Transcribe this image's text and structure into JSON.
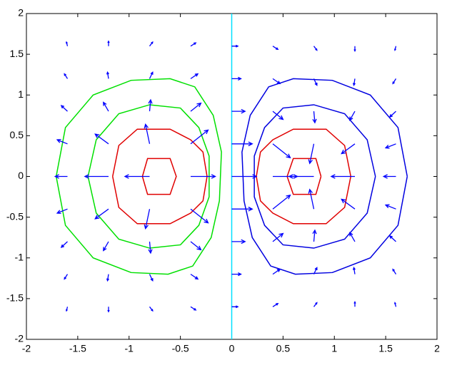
{
  "chart_data": {
    "type": "quiver",
    "xlim": [
      -2,
      2
    ],
    "ylim": [
      -2,
      2
    ],
    "xticks": [
      -2,
      -1.5,
      -1,
      -0.5,
      0,
      0.5,
      1,
      1.5,
      2
    ],
    "yticks": [
      -2,
      -1.5,
      -1,
      -0.5,
      0,
      0.5,
      1,
      1.5,
      2
    ],
    "quiver": {
      "color": "#0000ff",
      "x": [
        -1.6,
        -1.2,
        -0.8,
        -0.4,
        0,
        0.4,
        0.8,
        1.2,
        1.6
      ],
      "y": [
        -1.6,
        -1.2,
        -0.8,
        -0.4,
        0,
        0.4,
        0.8,
        1.2,
        1.6
      ],
      "u": [
        [
          -0.01,
          0,
          0.03,
          0.05,
          0.06,
          0.05,
          0.03,
          0,
          -0.01
        ],
        [
          -0.03,
          -0.01,
          0.03,
          0.07,
          0.09,
          0.07,
          0.03,
          -0.01,
          -0.03
        ],
        [
          -0.06,
          -0.05,
          0.01,
          0.1,
          0.13,
          0.1,
          0.01,
          -0.05,
          -0.06
        ],
        [
          -0.1,
          -0.13,
          -0.04,
          0.17,
          0.2,
          0.17,
          -0.04,
          -0.13,
          -0.1
        ],
        [
          -0.12,
          -0.23,
          -0.24,
          0.24,
          0.24,
          0.24,
          -0.24,
          -0.23,
          -0.12
        ],
        [
          -0.1,
          -0.13,
          -0.04,
          0.17,
          0.2,
          0.17,
          -0.04,
          -0.13,
          -0.1
        ],
        [
          -0.06,
          -0.05,
          0.01,
          0.1,
          0.13,
          0.1,
          0.01,
          -0.05,
          -0.06
        ],
        [
          -0.03,
          -0.01,
          0.03,
          0.07,
          0.09,
          0.07,
          0.03,
          -0.01,
          -0.03
        ],
        [
          -0.01,
          0,
          0.03,
          0.05,
          0.06,
          0.05,
          0.03,
          0,
          -0.01
        ]
      ],
      "v": [
        [
          -0.05,
          -0.06,
          -0.05,
          -0.04,
          0,
          0.04,
          0.05,
          0.06,
          0.05
        ],
        [
          -0.06,
          -0.08,
          -0.08,
          -0.06,
          0,
          0.06,
          0.08,
          0.08,
          0.06
        ],
        [
          -0.07,
          -0.11,
          -0.14,
          -0.1,
          0,
          0.1,
          0.14,
          0.11,
          0.07
        ],
        [
          -0.05,
          -0.12,
          -0.24,
          -0.17,
          0,
          0.17,
          0.24,
          0.12,
          0.05
        ],
        [
          0,
          0,
          0,
          0,
          0,
          0,
          0,
          0,
          0
        ],
        [
          0.05,
          0.12,
          0.24,
          0.17,
          0,
          -0.17,
          -0.24,
          -0.12,
          -0.05
        ],
        [
          0.07,
          0.11,
          0.14,
          0.1,
          0,
          -0.1,
          -0.14,
          -0.11,
          -0.07
        ],
        [
          0.06,
          0.08,
          0.08,
          0.06,
          0,
          -0.06,
          -0.08,
          -0.08,
          -0.06
        ],
        [
          0.05,
          0.06,
          0.05,
          0.04,
          0,
          -0.04,
          -0.05,
          -0.06,
          -0.05
        ]
      ]
    },
    "contours": [
      {
        "color": "#00e000",
        "x": [
          -1.71,
          -1.62,
          -1.35,
          -0.98,
          -0.6,
          -0.36,
          -0.18,
          -0.1,
          -0.12,
          -0.2,
          -0.38,
          -0.62,
          -0.98,
          -1.35,
          -1.62,
          -1.71
        ],
        "y": [
          0,
          0.6,
          1.0,
          1.18,
          1.2,
          1.1,
          0.75,
          0.3,
          -0.3,
          -0.75,
          -1.1,
          -1.2,
          -1.18,
          -1.0,
          -0.6,
          0
        ]
      },
      {
        "color": "#00e000",
        "x": [
          -1.4,
          -1.32,
          -1.1,
          -0.8,
          -0.5,
          -0.32,
          -0.22,
          -0.22,
          -0.32,
          -0.5,
          -0.8,
          -1.1,
          -1.32,
          -1.4
        ],
        "y": [
          0,
          0.45,
          0.77,
          0.88,
          0.84,
          0.6,
          0.25,
          -0.25,
          -0.6,
          -0.84,
          -0.88,
          -0.77,
          -0.45,
          0
        ]
      },
      {
        "color": "#e00000",
        "x": [
          -1.16,
          -1.1,
          -0.92,
          -0.6,
          -0.4,
          -0.28,
          -0.24,
          -0.28,
          -0.4,
          -0.6,
          -0.92,
          -1.1,
          -1.16
        ],
        "y": [
          0,
          0.38,
          0.58,
          0.58,
          0.45,
          0.3,
          0,
          -0.3,
          -0.45,
          -0.58,
          -0.58,
          -0.38,
          0
        ]
      },
      {
        "color": "#e00000",
        "x": [
          -0.87,
          -0.82,
          -0.6,
          -0.54,
          -0.6,
          -0.82,
          -0.87
        ],
        "y": [
          0,
          0.22,
          0.22,
          0,
          -0.22,
          -0.22,
          0
        ]
      },
      {
        "color": "#0000e0",
        "x": [
          1.71,
          1.62,
          1.35,
          0.98,
          0.6,
          0.36,
          0.18,
          0.1,
          0.12,
          0.2,
          0.38,
          0.62,
          0.98,
          1.35,
          1.62,
          1.71
        ],
        "y": [
          0,
          0.6,
          1.0,
          1.18,
          1.2,
          1.1,
          0.75,
          0.3,
          -0.3,
          -0.75,
          -1.1,
          -1.2,
          -1.18,
          -1.0,
          -0.6,
          0
        ]
      },
      {
        "color": "#0000e0",
        "x": [
          1.4,
          1.32,
          1.1,
          0.8,
          0.5,
          0.32,
          0.22,
          0.22,
          0.32,
          0.5,
          0.8,
          1.1,
          1.32,
          1.4
        ],
        "y": [
          0,
          0.45,
          0.77,
          0.88,
          0.84,
          0.6,
          0.25,
          -0.25,
          -0.6,
          -0.84,
          -0.88,
          -0.77,
          -0.45,
          0
        ]
      },
      {
        "color": "#e00000",
        "x": [
          1.16,
          1.1,
          0.92,
          0.6,
          0.4,
          0.28,
          0.24,
          0.28,
          0.4,
          0.6,
          0.92,
          1.1,
          1.16
        ],
        "y": [
          0,
          0.38,
          0.58,
          0.58,
          0.45,
          0.3,
          0,
          -0.3,
          -0.45,
          -0.58,
          -0.58,
          -0.38,
          0
        ]
      },
      {
        "color": "#e00000",
        "x": [
          0.87,
          0.82,
          0.6,
          0.54,
          0.6,
          0.82,
          0.87
        ],
        "y": [
          0,
          0.22,
          0.22,
          0,
          -0.22,
          -0.22,
          0
        ]
      },
      {
        "color": "#00e0ff",
        "x": [
          0,
          0
        ],
        "y": [
          -2,
          2
        ]
      }
    ]
  }
}
